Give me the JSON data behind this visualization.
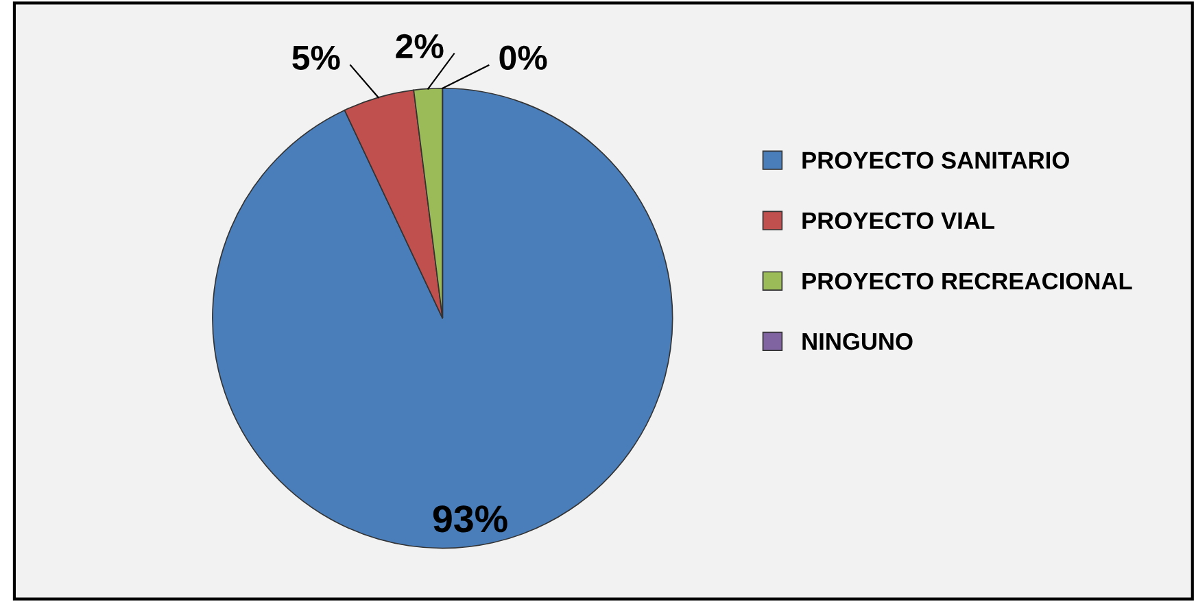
{
  "chart_data": {
    "type": "pie",
    "categories": [
      "PROYECTO SANITARIO",
      "PROYECTO VIAL",
      "PROYECTO RECREACIONAL",
      "NINGUNO"
    ],
    "values": [
      93,
      5,
      2,
      0
    ],
    "value_labels": [
      "93%",
      "5%",
      "2%",
      "0%"
    ],
    "colors": [
      "#4a7ebb",
      "#c0504d",
      "#9bbb59",
      "#8064a2"
    ],
    "legend": "right"
  }
}
